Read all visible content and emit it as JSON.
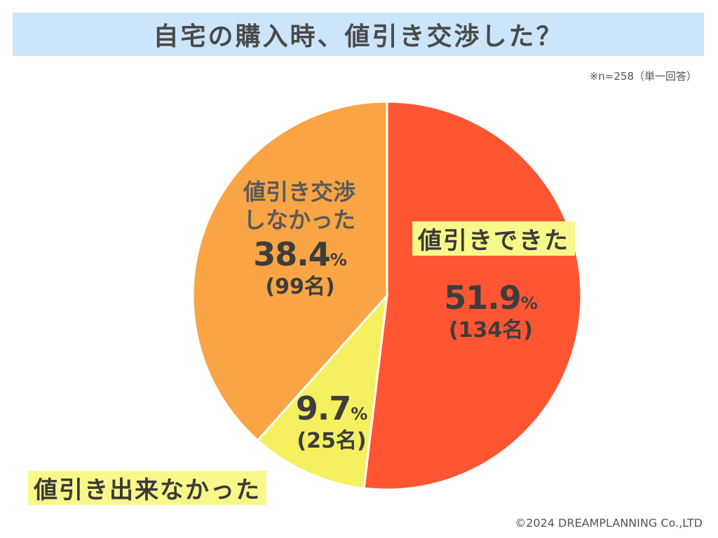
{
  "title": "自宅の購入時、値引き交渉した？",
  "note": "※n=258（単一回答）",
  "copyright": "©2024 DREAMPLANNING Co.,LTD",
  "chart_data": {
    "type": "pie",
    "title": "自宅の購入時、値引き交渉した？",
    "slices": [
      {
        "label": "値引きできた",
        "value": 51.9,
        "count_label": "(134名)",
        "color": "#ff5533"
      },
      {
        "label": "値引き出来なかった",
        "value": 9.7,
        "count_label": "(25名)",
        "color": "#f4f060"
      },
      {
        "label": "値引き交渉しなかった",
        "label_lines": [
          "値引き交渉",
          "しなかった"
        ],
        "value": 38.4,
        "count_label": "(99名)",
        "color": "#f9a545"
      }
    ],
    "unit": "%",
    "start_angle": "12 o'clock",
    "direction": "clockwise"
  }
}
